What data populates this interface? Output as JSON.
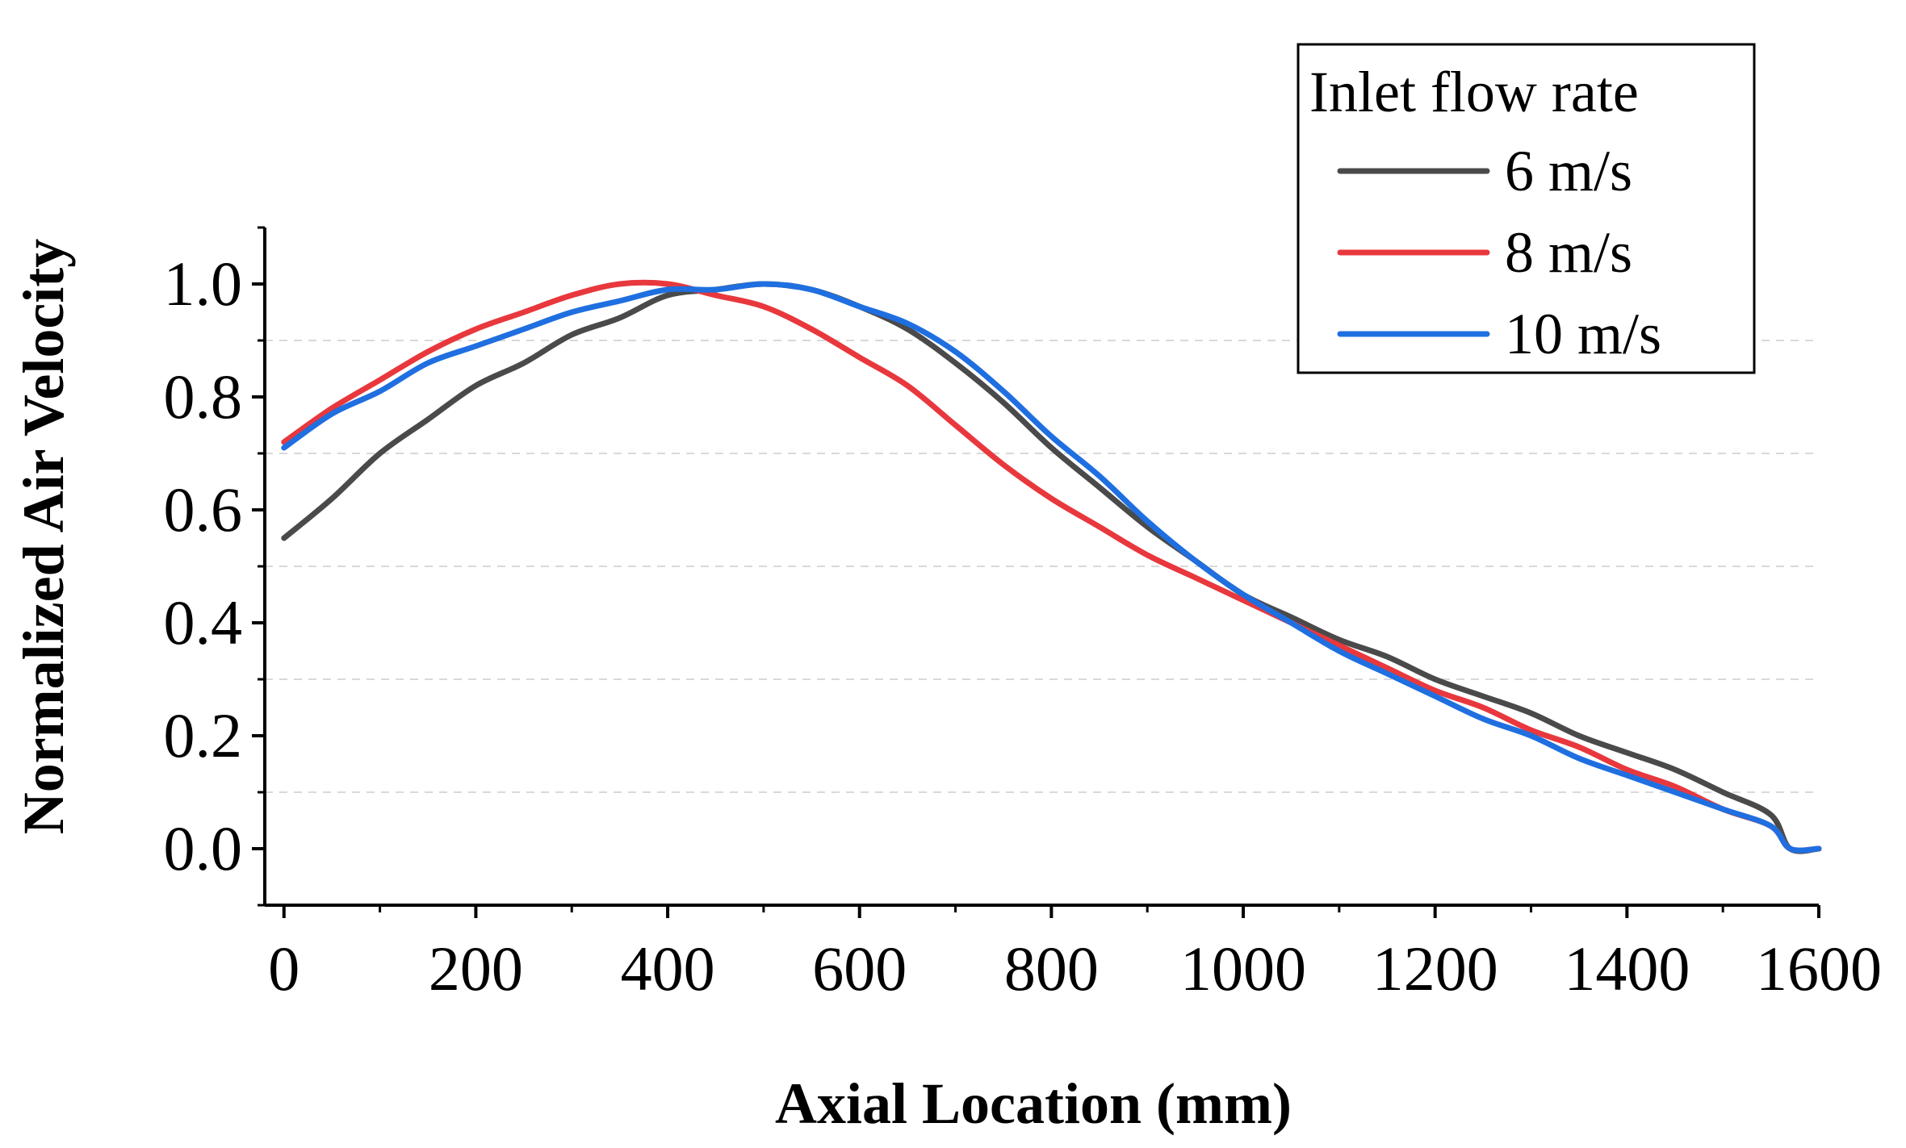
{
  "chart_data": {
    "type": "line",
    "title": "",
    "xlabel": "Axial Location (mm)",
    "ylabel": "Normalized Air Velocity",
    "xlim": [
      -20,
      1600
    ],
    "ylim": [
      -0.1,
      1.1
    ],
    "x_ticks": [
      0,
      200,
      400,
      600,
      800,
      1000,
      1200,
      1400,
      1600
    ],
    "x_tick_labels": [
      "0",
      "200",
      "400",
      "600",
      "800",
      "1000",
      "1200",
      "1400",
      "1600"
    ],
    "y_ticks": [
      0,
      0.2,
      0.4,
      0.6,
      0.8,
      1.0
    ],
    "y_tick_labels": [
      "0.0",
      "0.2",
      "0.4",
      "0.6",
      "0.8",
      "1.0"
    ],
    "grid": "horizontal dashed at minor ticks",
    "legend": {
      "title": "Inlet flow rate",
      "position": "top-right"
    },
    "series": [
      {
        "name": "6 m/s",
        "color": "#4a4a4a",
        "x": [
          0,
          50,
          100,
          150,
          200,
          250,
          300,
          350,
          400,
          450,
          500,
          550,
          600,
          650,
          700,
          750,
          800,
          850,
          900,
          950,
          1000,
          1050,
          1100,
          1150,
          1200,
          1250,
          1300,
          1350,
          1400,
          1450,
          1500,
          1550,
          1570,
          1600
        ],
        "y": [
          0.55,
          0.62,
          0.7,
          0.76,
          0.82,
          0.86,
          0.91,
          0.94,
          0.98,
          0.99,
          1.0,
          0.99,
          0.96,
          0.92,
          0.86,
          0.79,
          0.71,
          0.64,
          0.57,
          0.51,
          0.45,
          0.41,
          0.37,
          0.34,
          0.3,
          0.27,
          0.24,
          0.2,
          0.17,
          0.14,
          0.1,
          0.06,
          0.0,
          0.0
        ]
      },
      {
        "name": "8 m/s",
        "color": "#e8383d",
        "x": [
          0,
          50,
          100,
          150,
          200,
          250,
          300,
          350,
          400,
          450,
          500,
          550,
          600,
          650,
          700,
          750,
          800,
          850,
          900,
          950,
          1000,
          1050,
          1100,
          1150,
          1200,
          1250,
          1300,
          1350,
          1400,
          1450,
          1500,
          1550,
          1570,
          1600
        ],
        "y": [
          0.72,
          0.78,
          0.83,
          0.88,
          0.92,
          0.95,
          0.98,
          1.0,
          1.0,
          0.98,
          0.96,
          0.92,
          0.87,
          0.82,
          0.75,
          0.68,
          0.62,
          0.57,
          0.52,
          0.48,
          0.44,
          0.4,
          0.36,
          0.32,
          0.28,
          0.25,
          0.21,
          0.18,
          0.14,
          0.11,
          0.07,
          0.04,
          0.0,
          0.0
        ]
      },
      {
        "name": "10 m/s",
        "color": "#1f6fe0",
        "x": [
          0,
          50,
          100,
          150,
          200,
          250,
          300,
          350,
          400,
          450,
          500,
          550,
          600,
          650,
          700,
          750,
          800,
          850,
          900,
          950,
          1000,
          1050,
          1100,
          1150,
          1200,
          1250,
          1300,
          1350,
          1400,
          1450,
          1500,
          1550,
          1570,
          1600
        ],
        "y": [
          0.71,
          0.77,
          0.81,
          0.86,
          0.89,
          0.92,
          0.95,
          0.97,
          0.99,
          0.99,
          1.0,
          0.99,
          0.96,
          0.93,
          0.88,
          0.81,
          0.73,
          0.66,
          0.58,
          0.51,
          0.45,
          0.4,
          0.35,
          0.31,
          0.27,
          0.23,
          0.2,
          0.16,
          0.13,
          0.1,
          0.07,
          0.04,
          0.0,
          0.0
        ]
      }
    ]
  }
}
